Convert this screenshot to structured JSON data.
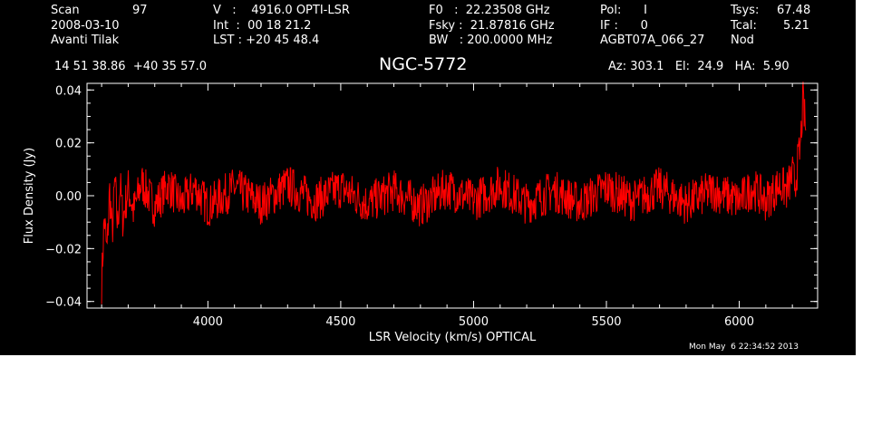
{
  "header": {
    "scan_label": "Scan",
    "scan_value": "97",
    "date": "2008-03-10",
    "observer": "Avanti Tilak",
    "v_line": "V   :    4916.0 OPTI-LSR",
    "int_line": "Int  :  00 18 21.2",
    "lst_line": "LST : +20 45 48.4",
    "f0_line": "F0   :  22.23508 GHz",
    "fsky_line": "Fsky :  21.87816 GHz",
    "bw_line": "BW   : 200.0000 MHz",
    "pol_line": "Pol:      I",
    "if_line": "IF :      0",
    "project": "AGBT07A_066_27",
    "tsys_label": "Tsys:",
    "tsys_value": "67.48",
    "tcal_label": "Tcal:",
    "tcal_value": "5.21",
    "mode": "Nod",
    "coords": "14 51 38.86  +40 35 57.0",
    "object": "NGC-5772",
    "az_el_ha": "Az: 303.1   El:  24.9   HA:  5.90",
    "timestamp": "Mon May  6 22:34:52 2013"
  },
  "colors": {
    "background": "#000000",
    "axes": "#ffffff",
    "trace": "#ff0000"
  },
  "chart_data": {
    "type": "line",
    "xlabel": "LSR Velocity (km/s) OPTICAL",
    "ylabel": "Flux Density (Jy)",
    "xlim": [
      3545,
      6295
    ],
    "ylim": [
      -0.0425,
      0.0425
    ],
    "x_ticks": [
      {
        "value": 4000,
        "label": "4000"
      },
      {
        "value": 4500,
        "label": "4500"
      },
      {
        "value": 5000,
        "label": "5000"
      },
      {
        "value": 5500,
        "label": "5500"
      },
      {
        "value": 6000,
        "label": "6000"
      }
    ],
    "y_ticks": [
      {
        "value": -0.04,
        "label": "−0.04"
      },
      {
        "value": -0.02,
        "label": "−0.02"
      },
      {
        "value": 0.0,
        "label": "0.00"
      },
      {
        "value": 0.02,
        "label": "0.02"
      },
      {
        "value": 0.04,
        "label": "0.04"
      }
    ],
    "series": [
      {
        "x": [
          3600,
          3610,
          3620,
          3630,
          3640,
          3650,
          3660,
          3670,
          3680,
          3700,
          3720,
          3750,
          3800,
          3850,
          3900,
          3950,
          4000,
          4100,
          4200,
          4300,
          4400,
          4500,
          4600,
          4700,
          4800,
          4900,
          5000,
          5100,
          5200,
          5300,
          5400,
          5500,
          5600,
          5700,
          5800,
          5900,
          6000,
          6050,
          6100,
          6150,
          6180,
          6200,
          6210,
          6220,
          6230,
          6240,
          6250
        ],
        "y": [
          -0.033,
          -0.008,
          -0.022,
          0.002,
          -0.015,
          0.006,
          -0.012,
          0.004,
          -0.009,
          0.003,
          -0.006,
          0.005,
          -0.004,
          0.004,
          -0.003,
          0.003,
          -0.004,
          0.003,
          -0.003,
          0.004,
          -0.002,
          0.003,
          -0.003,
          0.002,
          -0.004,
          0.003,
          -0.002,
          0.004,
          -0.003,
          0.002,
          -0.003,
          0.003,
          -0.002,
          0.003,
          -0.003,
          0.002,
          -0.002,
          0.003,
          -0.002,
          0.004,
          0.002,
          0.008,
          0.004,
          0.012,
          0.018,
          0.036,
          0.025
        ]
      }
    ]
  }
}
